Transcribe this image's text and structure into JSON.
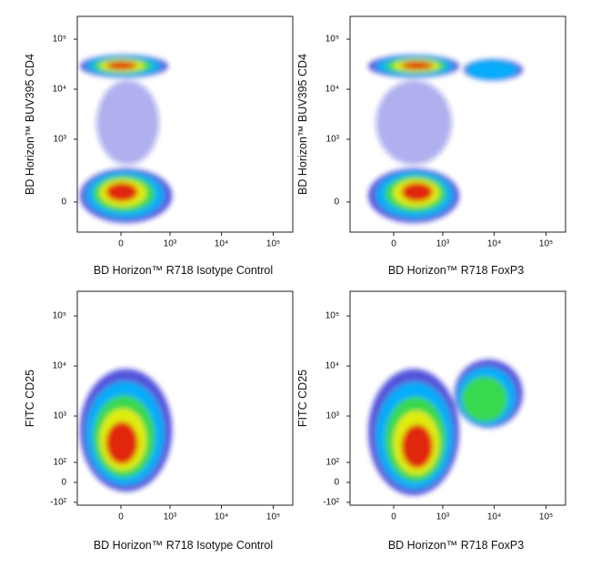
{
  "chart_data": [
    {
      "type": "density",
      "x_label": "BD Horizon™ R718 Isotype Control",
      "y_label": "BD Horizon™ BUV395 CD4",
      "xlim": [
        -780,
        238000
      ],
      "ylim": [
        -210,
        285000
      ],
      "xscale": {
        "type": "biexponential",
        "width": 229
      },
      "yscale": {
        "type": "biexponential",
        "width": 112
      },
      "xticks": [
        0,
        {
          "value": 1000,
          "label": "10³"
        },
        {
          "value": 10000,
          "label": "10⁴"
        },
        {
          "value": 100000,
          "label": "10⁵"
        }
      ],
      "yticks": [
        0,
        {
          "value": 1000,
          "label": "10³"
        },
        {
          "value": 10000,
          "label": "10⁴"
        },
        {
          "value": 100000,
          "label": "10⁵"
        }
      ],
      "colors": [
        "#1a1ad0",
        "#00b8ff",
        "#3ede3e",
        "#f2f000",
        "#e01010"
      ],
      "populations": [
        {
          "x": [
            -690,
            920
          ],
          "y": [
            17000,
            49000
          ],
          "peak": [
            0,
            30000
          ],
          "levels": 5
        },
        {
          "x": [
            -300,
            600
          ],
          "y": [
            300,
            15000
          ],
          "peak": [
            0,
            2000
          ],
          "levels": 1
        },
        {
          "x": [
            -690,
            1100
          ],
          "y": [
            -125,
            250
          ],
          "peak": [
            0,
            58
          ],
          "levels": 5
        }
      ]
    },
    {
      "type": "density",
      "x_label": "BD Horizon™ R718 FoxP3",
      "y_label": "BD Horizon™ BUV395 CD4",
      "xlim": [
        -780,
        238000
      ],
      "ylim": [
        -210,
        285000
      ],
      "xscale": {
        "type": "biexponential",
        "width": 229
      },
      "yscale": {
        "type": "biexponential",
        "width": 112
      },
      "xticks": [
        0,
        {
          "value": 1000,
          "label": "10³"
        },
        {
          "value": 10000,
          "label": "10⁴"
        },
        {
          "value": 100000,
          "label": "10⁵"
        }
      ],
      "yticks": [
        0,
        {
          "value": 1000,
          "label": "10³"
        },
        {
          "value": 10000,
          "label": "10⁴"
        },
        {
          "value": 100000,
          "label": "10⁵"
        }
      ],
      "colors": [
        "#1a1ad0",
        "#00b8ff",
        "#3ede3e",
        "#f2f000",
        "#e01010"
      ],
      "populations": [
        {
          "x": [
            -318,
            2100
          ],
          "y": [
            17000,
            49000
          ],
          "peak": [
            300,
            30000
          ],
          "levels": 5
        },
        {
          "x": [
            2560,
            35500
          ],
          "y": [
            15000,
            40000
          ],
          "peak": [
            7000,
            24000
          ],
          "levels": 2
        },
        {
          "x": [
            -200,
            1500
          ],
          "y": [
            300,
            15000
          ],
          "peak": [
            300,
            2000
          ],
          "levels": 1
        },
        {
          "x": [
            -318,
            2100
          ],
          "y": [
            -125,
            250
          ],
          "peak": [
            300,
            58
          ],
          "levels": 5
        }
      ]
    },
    {
      "type": "density",
      "x_label": "BD Horizon™ R718 Isotype Control",
      "y_label": "FITC CD25",
      "xlim": [
        -780,
        238000
      ],
      "ylim": [
        -119,
        310000
      ],
      "xscale": {
        "type": "biexponential",
        "width": 229
      },
      "yscale": {
        "type": "biexponential",
        "width": 95
      },
      "xticks": [
        0,
        {
          "value": 1000,
          "label": "10³"
        },
        {
          "value": 10000,
          "label": "10⁴"
        },
        {
          "value": 100000,
          "label": "10⁵"
        }
      ],
      "yticks": [
        {
          "value": -100,
          "label": "-10²"
        },
        0,
        {
          "value": 100,
          "label": "10²"
        },
        {
          "value": 1000,
          "label": "10³"
        },
        {
          "value": 10000,
          "label": "10⁴"
        },
        {
          "value": 100000,
          "label": "10⁵"
        }
      ],
      "colors": [
        "#1a1ad0",
        "#00b8ff",
        "#3ede3e",
        "#f2f000",
        "#e01010"
      ],
      "populations": [
        {
          "x": [
            -690,
            1100
          ],
          "y": [
            -41,
            8800
          ],
          "peak": [
            0,
            243
          ],
          "levels": 5
        }
      ]
    },
    {
      "type": "density",
      "x_label": "BD Horizon™ R718 FoxP3",
      "y_label": "FITC CD25",
      "xlim": [
        -780,
        238000
      ],
      "ylim": [
        -119,
        310000
      ],
      "xscale": {
        "type": "biexponential",
        "width": 229
      },
      "yscale": {
        "type": "biexponential",
        "width": 95
      },
      "xticks": [
        0,
        {
          "value": 1000,
          "label": "10³"
        },
        {
          "value": 10000,
          "label": "10⁴"
        },
        {
          "value": 100000,
          "label": "10⁵"
        }
      ],
      "yticks": [
        {
          "value": -100,
          "label": "-10²"
        },
        0,
        {
          "value": 100,
          "label": "10²"
        },
        {
          "value": 1000,
          "label": "10³"
        },
        {
          "value": 10000,
          "label": "10⁴"
        },
        {
          "value": 100000,
          "label": "10⁵"
        }
      ],
      "colors": [
        "#1a1ad0",
        "#00b8ff",
        "#3ede3e",
        "#f2f000",
        "#e01010"
      ],
      "populations": [
        {
          "x": [
            -318,
            2100
          ],
          "y": [
            -60,
            8800
          ],
          "peak": [
            300,
            200
          ],
          "levels": 5
        },
        {
          "x": [
            1700,
            35500
          ],
          "y": [
            580,
            13500
          ],
          "peak": [
            5000,
            1500
          ],
          "levels": 3
        }
      ]
    }
  ]
}
